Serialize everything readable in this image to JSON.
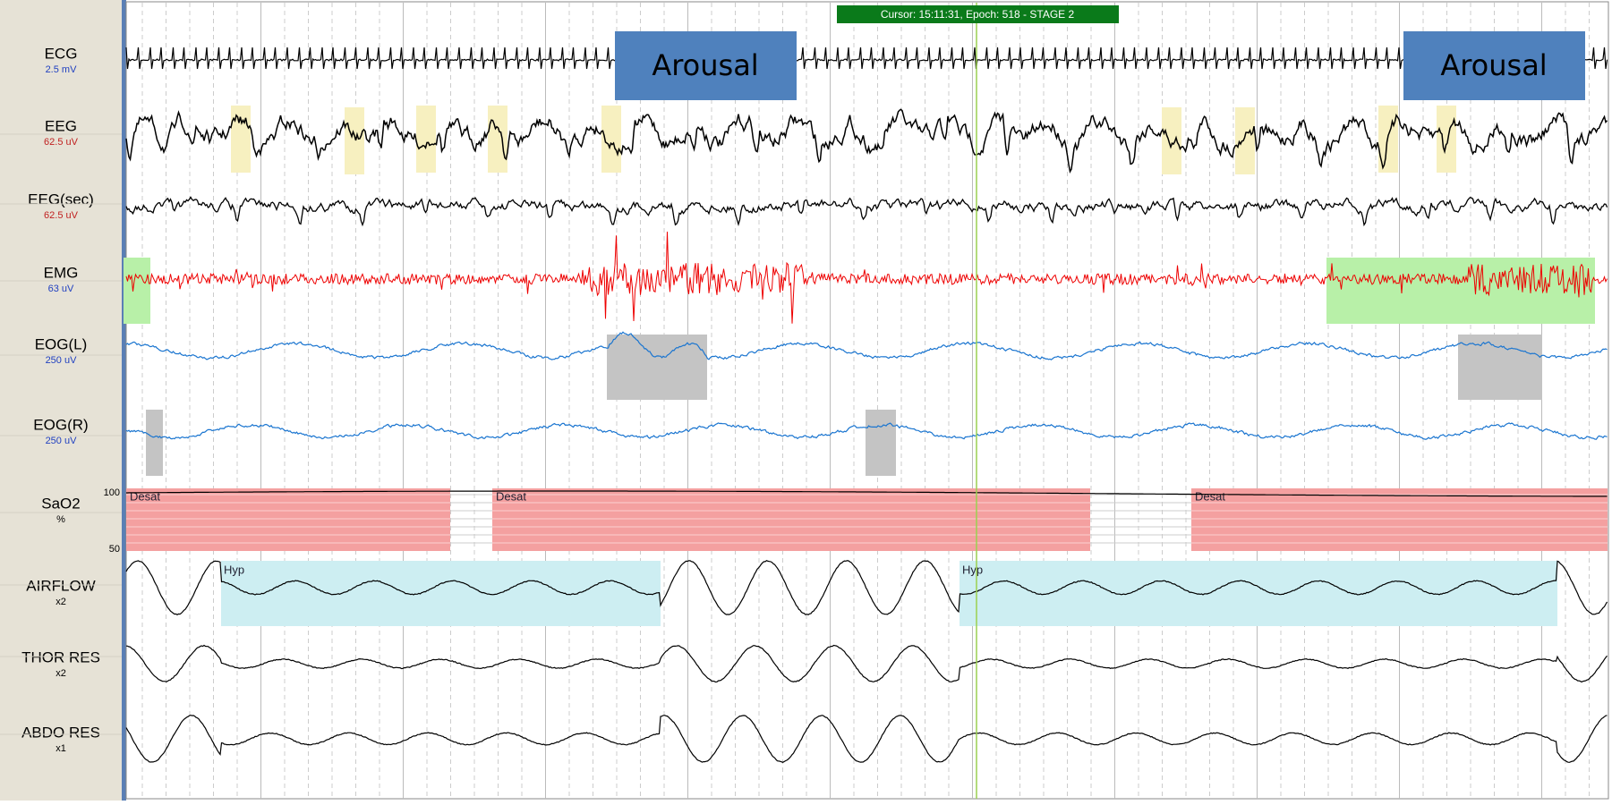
{
  "cursor_label": "Cursor: 15:11:31, Epoch: 518 - STAGE 2",
  "channels": [
    {
      "label": "ECG",
      "scale": "2.5 mV"
    },
    {
      "label": "EEG",
      "scale": "62.5 uV"
    },
    {
      "label": "EEG(sec)",
      "scale": "62.5 uV"
    },
    {
      "label": "EMG",
      "scale": "63 uV"
    },
    {
      "label": "EOG(L)",
      "scale": "250 uV"
    },
    {
      "label": "EOG(R)",
      "scale": "250 uV"
    },
    {
      "label": "SaO2",
      "scale": "%"
    },
    {
      "label": "AIRFLOW",
      "scale": "x2"
    },
    {
      "label": "THOR RES",
      "scale": "x2"
    },
    {
      "label": "ABDO RES",
      "scale": "x1"
    }
  ],
  "sao2_range": {
    "top": "100",
    "bottom": "50"
  },
  "annotations": [
    "Arousal",
    "Arousal"
  ],
  "desat_events": [
    "Desat",
    "Desat",
    "Desat"
  ],
  "hyp_events": [
    "Hyp",
    "Hyp"
  ]
}
